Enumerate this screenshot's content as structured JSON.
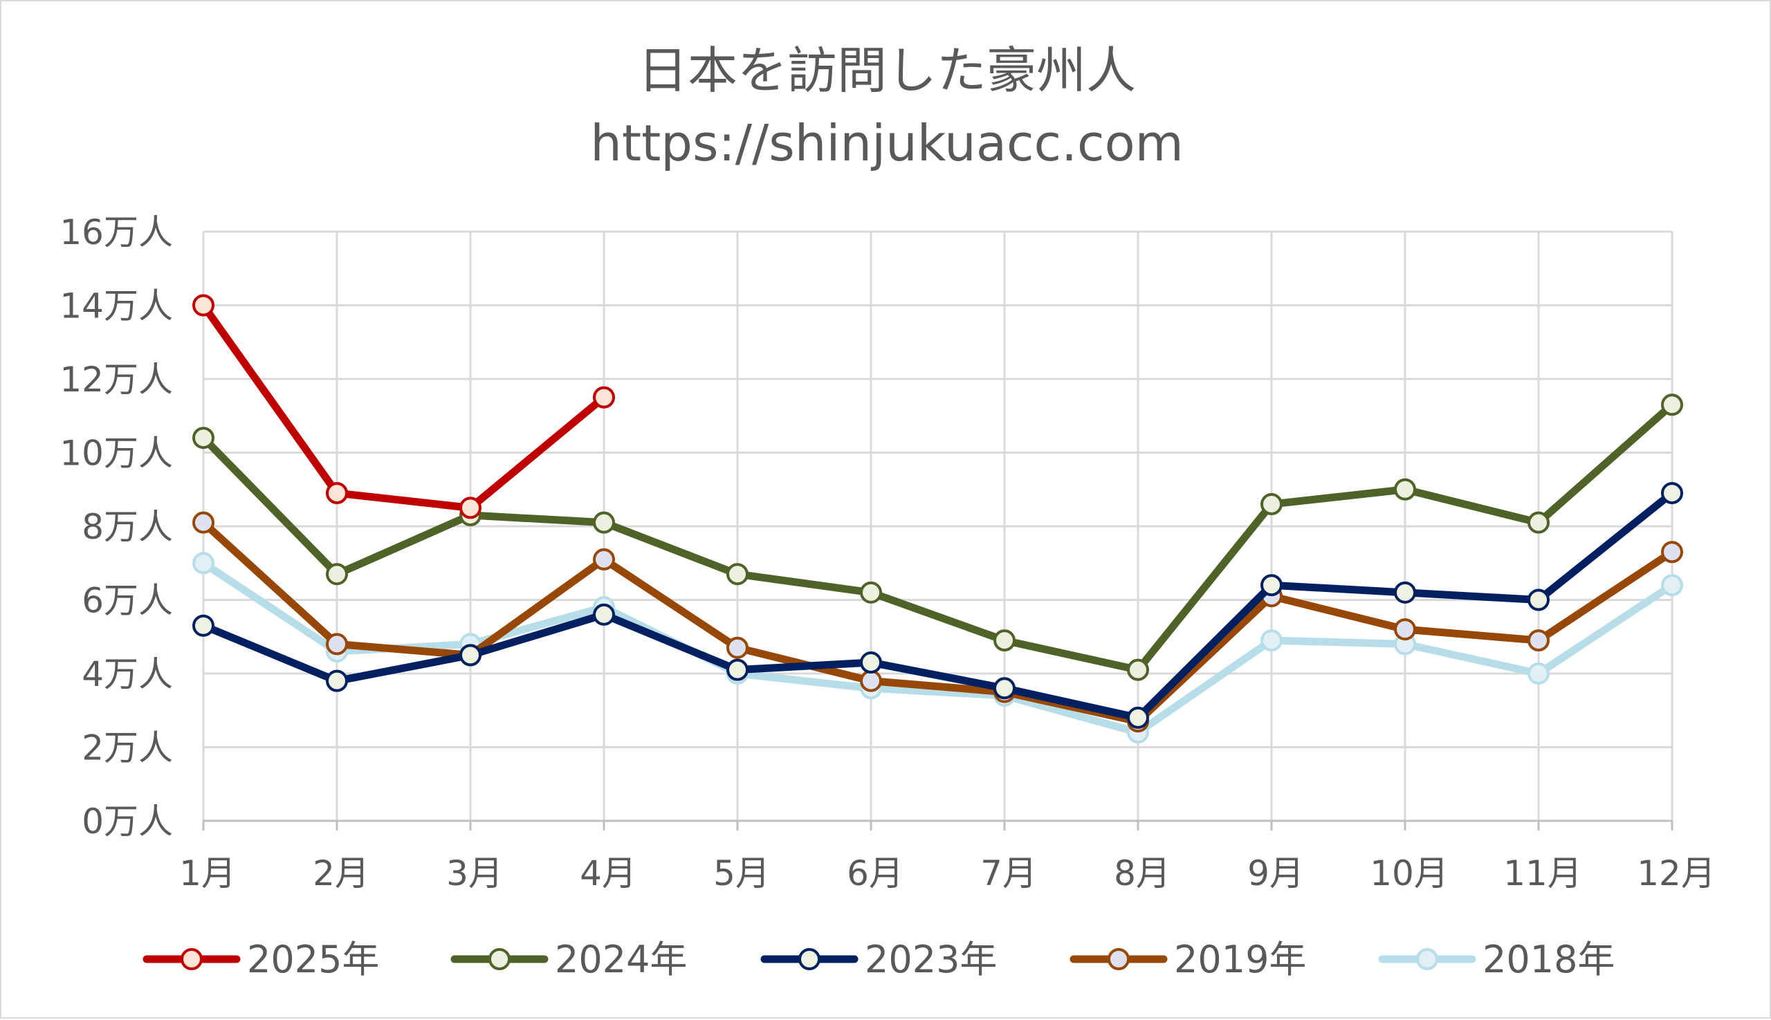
{
  "chart_data": {
    "type": "line",
    "title": "日本を訪問した豪州人",
    "subtitle": "https://shinjukuacc.com",
    "xlabel": "",
    "ylabel": "",
    "categories": [
      "1月",
      "2月",
      "3月",
      "4月",
      "5月",
      "6月",
      "7月",
      "8月",
      "9月",
      "10月",
      "11月",
      "12月"
    ],
    "ylim": [
      0,
      160000
    ],
    "y_ticks": [
      0,
      20000,
      40000,
      60000,
      80000,
      100000,
      120000,
      140000,
      160000
    ],
    "y_tick_labels": [
      "0万人",
      "2万人",
      "4万人",
      "6万人",
      "8万人",
      "10万人",
      "12万人",
      "14万人",
      "16万人"
    ],
    "grid": true,
    "legend_position": "bottom",
    "series": [
      {
        "name": "2025年",
        "color": "#c00000",
        "marker_fill": "#fce4d6",
        "values": [
          140000,
          89000,
          85000,
          115000,
          null,
          null,
          null,
          null,
          null,
          null,
          null,
          null
        ]
      },
      {
        "name": "2024年",
        "color": "#4f6228",
        "marker_fill": "#ebf1de",
        "values": [
          104000,
          67000,
          83000,
          81000,
          67000,
          62000,
          49000,
          41000,
          86000,
          90000,
          81000,
          113000
        ]
      },
      {
        "name": "2023年",
        "color": "#002060",
        "marker_fill": "#eef2e0",
        "values": [
          53000,
          38000,
          45000,
          56000,
          41000,
          43000,
          36000,
          28000,
          64000,
          62000,
          60000,
          89000
        ]
      },
      {
        "name": "2019年",
        "color": "#974706",
        "marker_fill": "#dde1f0",
        "values": [
          81000,
          48000,
          45000,
          71000,
          47000,
          38000,
          35000,
          27000,
          61000,
          52000,
          49000,
          73000
        ]
      },
      {
        "name": "2018年",
        "color": "#b7dde8",
        "marker_fill": "#e0f0f6",
        "values": [
          70000,
          46000,
          48000,
          58000,
          40000,
          36000,
          34000,
          24000,
          49000,
          48000,
          40000,
          64000
        ]
      }
    ]
  }
}
